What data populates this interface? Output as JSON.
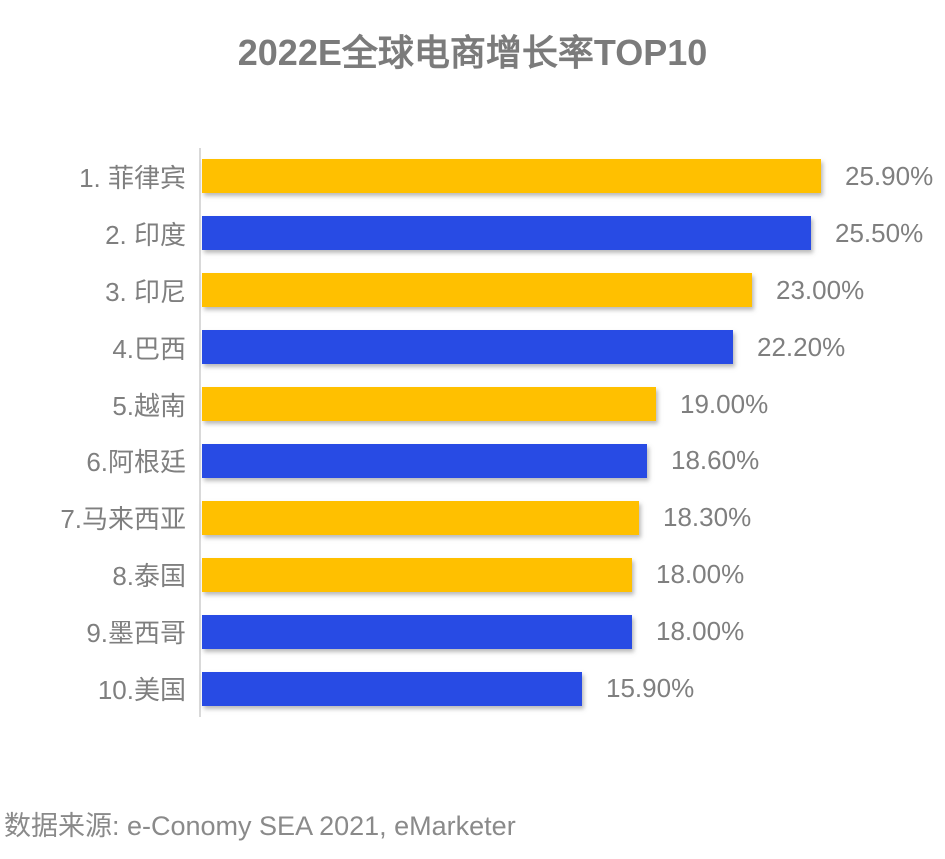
{
  "title": "2022E全球电商增长率TOP10",
  "source": "数据来源: e-Conomy SEA 2021, eMarketer",
  "colors": {
    "yellow": "#FFC000",
    "blue": "#284BE4",
    "axis": "#D9D9D9",
    "text_gray": "#7F7F7F",
    "title_gray": "#7B7B7B",
    "source_gray": "#8A8A8A"
  },
  "chart_data": {
    "type": "bar",
    "orientation": "horizontal",
    "title": "2022E全球电商增长率TOP10",
    "xlabel": "",
    "ylabel": "",
    "xlim": [
      0,
      27
    ],
    "grid": false,
    "legend": "none",
    "categories": [
      "1. 菲律宾",
      "2. 印度",
      "3. 印尼",
      "4.巴西",
      "5.越南",
      "6.阿根廷",
      "7.马来西亚",
      "8.泰国",
      "9.墨西哥",
      "10.美国"
    ],
    "values": [
      25.9,
      25.5,
      23.0,
      22.2,
      19.0,
      18.6,
      18.3,
      18.0,
      18.0,
      15.9
    ],
    "value_labels": [
      "25.90%",
      "25.50%",
      "23.00%",
      "22.20%",
      "19.00%",
      "18.60%",
      "18.30%",
      "18.00%",
      "18.00%",
      "15.90%"
    ],
    "bar_colors": [
      "yellow",
      "blue",
      "yellow",
      "blue",
      "yellow",
      "blue",
      "yellow",
      "yellow",
      "blue",
      "blue"
    ]
  }
}
